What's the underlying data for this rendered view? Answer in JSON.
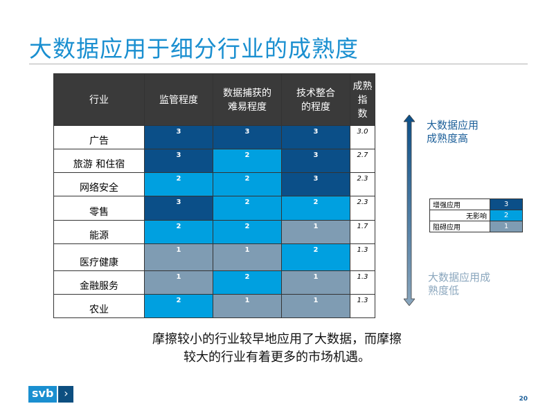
{
  "title": "大数据应用于细分行业的成熟度",
  "table": {
    "headers": [
      "行业",
      "监管程度",
      "数据捕获的\n难易程度",
      "技术整合\n的程度",
      "成熟指\n数"
    ],
    "rows": [
      {
        "industry": "广告",
        "values": [
          "3",
          "3",
          "3"
        ],
        "score": "3.0"
      },
      {
        "industry": "旅游 和住宿",
        "values": [
          "3",
          "2",
          "3"
        ],
        "score": "2.7"
      },
      {
        "industry": "网络安全",
        "values": [
          "2",
          "2",
          "3"
        ],
        "score": "2.3"
      },
      {
        "industry": "零售",
        "values": [
          "3",
          "2",
          "2"
        ],
        "score": "2.3"
      },
      {
        "industry": "能源",
        "values": [
          "2",
          "2",
          "1"
        ],
        "score": "1.7"
      },
      {
        "industry": "医疗健康",
        "values": [
          "1",
          "1",
          "2"
        ],
        "score": "1.3"
      },
      {
        "industry": "金融服务",
        "values": [
          "1",
          "2",
          "1"
        ],
        "score": "1.3"
      },
      {
        "industry": "农业",
        "values": [
          "2",
          "1",
          "1"
        ],
        "score": "1.3"
      }
    ]
  },
  "colors": {
    "3": "#0b4f88",
    "2": "#00a0e0",
    "1": "#7f9cb3"
  },
  "scale": {
    "high": "大数据应用\n成熟度高",
    "low": "大数据应用成\n熟度低"
  },
  "legend": [
    {
      "label": "增强应用",
      "value": "3"
    },
    {
      "label": "无影响",
      "value": "2"
    },
    {
      "label": "阻碍应用",
      "value": "1"
    }
  ],
  "summary": "摩擦较小的行业较早地应用了大数据，而摩擦\n较大的行业有着更多的市场机遇。",
  "logo": "svb",
  "page_number": "20"
}
